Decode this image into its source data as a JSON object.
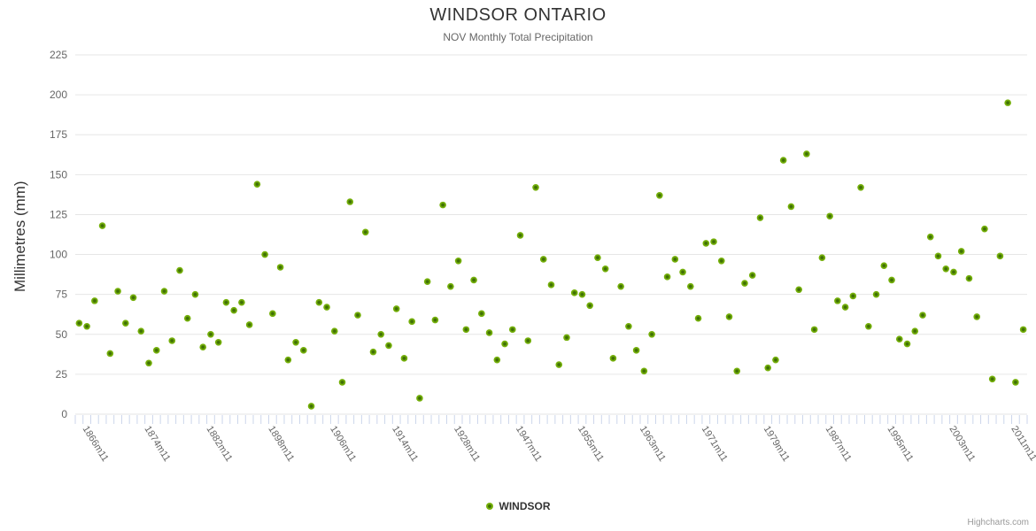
{
  "header": {
    "title": "WINDSOR ONTARIO",
    "subtitle": "NOV Monthly Total Precipitation"
  },
  "legend": {
    "series_label": "WINDSOR"
  },
  "credit_label": "Highcharts.com",
  "colors": {
    "marker_outer": "#76b10b",
    "marker_core": "#3f7004",
    "grid": "#e6e6e6",
    "tick": "#ccd6eb",
    "title_text": "#333333",
    "muted_text": "#666666",
    "credit_text": "#999999"
  },
  "chart_data": {
    "type": "scatter",
    "title": "WINDSOR ONTARIO",
    "subtitle": "NOV Monthly Total Precipitation",
    "xlabel": "",
    "ylabel": "Millimetres (mm)",
    "ylim": [
      0,
      225
    ],
    "ytick_interval": 25,
    "grid": true,
    "legend_position": "bottom-center",
    "xticks_shown": [
      "1866m11",
      "1874m11",
      "1882m11",
      "1898m11",
      "1906m11",
      "1914m11",
      "1928m11",
      "1947m11",
      "1955m11",
      "1963m11",
      "1971m11",
      "1979m11",
      "1987m11",
      "1995m11",
      "2003m11",
      "2011m11"
    ],
    "series": [
      {
        "name": "WINDSOR",
        "points": [
          [
            "1865m11",
            57
          ],
          [
            "1866m11",
            55
          ],
          [
            "1867m11",
            71
          ],
          [
            "1868m11",
            118
          ],
          [
            "1869m11",
            38
          ],
          [
            "1870m11",
            77
          ],
          [
            "1871m11",
            57
          ],
          [
            "1872m11",
            73
          ],
          [
            "1873m11",
            52
          ],
          [
            "1874m11",
            32
          ],
          [
            "1875m11",
            40
          ],
          [
            "1876m11",
            77
          ],
          [
            "1877m11",
            46
          ],
          [
            "1878m11",
            90
          ],
          [
            "1879m11",
            60
          ],
          [
            "1880m11",
            75
          ],
          [
            "1881m11",
            42
          ],
          [
            "1882m11",
            50
          ],
          [
            "1883m11",
            45
          ],
          [
            "1884m11",
            70
          ],
          [
            "1885m11",
            65
          ],
          [
            "1886m11",
            70
          ],
          [
            "1887m11",
            56
          ],
          [
            "1888m11",
            144
          ],
          [
            "1889m11",
            100
          ],
          [
            "1898m11",
            63
          ],
          [
            "1899m11",
            92
          ],
          [
            "1900m11",
            34
          ],
          [
            "1901m11",
            45
          ],
          [
            "1902m11",
            40
          ],
          [
            "1903m11",
            5
          ],
          [
            "1904m11",
            70
          ],
          [
            "1905m11",
            67
          ],
          [
            "1906m11",
            52
          ],
          [
            "1907m11",
            20
          ],
          [
            "1908m11",
            133
          ],
          [
            "1909m11",
            62
          ],
          [
            "1910m11",
            114
          ],
          [
            "1911m11",
            39
          ],
          [
            "1912m11",
            50
          ],
          [
            "1913m11",
            43
          ],
          [
            "1914m11",
            66
          ],
          [
            "1915m11",
            35
          ],
          [
            "1916m11",
            58
          ],
          [
            "1917m11",
            10
          ],
          [
            "1918m11",
            83
          ],
          [
            "1919m11",
            59
          ],
          [
            "1920m11",
            131
          ],
          [
            "1921m11",
            80
          ],
          [
            "1928m11",
            96
          ],
          [
            "1929m11",
            53
          ],
          [
            "1930m11",
            84
          ],
          [
            "1931m11",
            63
          ],
          [
            "1932m11",
            51
          ],
          [
            "1933m11",
            34
          ],
          [
            "1934m11",
            44
          ],
          [
            "1935m11",
            53
          ],
          [
            "1947m11",
            112
          ],
          [
            "1948m11",
            46
          ],
          [
            "1949m11",
            142
          ],
          [
            "1950m11",
            97
          ],
          [
            "1951m11",
            81
          ],
          [
            "1952m11",
            31
          ],
          [
            "1953m11",
            48
          ],
          [
            "1954m11",
            76
          ],
          [
            "1955m11",
            75
          ],
          [
            "1956m11",
            68
          ],
          [
            "1957m11",
            98
          ],
          [
            "1958m11",
            91
          ],
          [
            "1959m11",
            35
          ],
          [
            "1960m11",
            80
          ],
          [
            "1961m11",
            55
          ],
          [
            "1962m11",
            40
          ],
          [
            "1963m11",
            27
          ],
          [
            "1964m11",
            50
          ],
          [
            "1965m11",
            137
          ],
          [
            "1966m11",
            86
          ],
          [
            "1967m11",
            97
          ],
          [
            "1968m11",
            89
          ],
          [
            "1969m11",
            80
          ],
          [
            "1970m11",
            60
          ],
          [
            "1971m11",
            107
          ],
          [
            "1972m11",
            108
          ],
          [
            "1973m11",
            96
          ],
          [
            "1974m11",
            61
          ],
          [
            "1975m11",
            27
          ],
          [
            "1976m11",
            82
          ],
          [
            "1977m11",
            87
          ],
          [
            "1978m11",
            123
          ],
          [
            "1979m11",
            29
          ],
          [
            "1980m11",
            34
          ],
          [
            "1981m11",
            159
          ],
          [
            "1982m11",
            130
          ],
          [
            "1983m11",
            78
          ],
          [
            "1984m11",
            163
          ],
          [
            "1985m11",
            53
          ],
          [
            "1986m11",
            98
          ],
          [
            "1987m11",
            124
          ],
          [
            "1988m11",
            71
          ],
          [
            "1989m11",
            67
          ],
          [
            "1990m11",
            74
          ],
          [
            "1991m11",
            142
          ],
          [
            "1992m11",
            55
          ],
          [
            "1993m11",
            75
          ],
          [
            "1994m11",
            93
          ],
          [
            "1995m11",
            84
          ],
          [
            "1996m11",
            47
          ],
          [
            "1997m11",
            44
          ],
          [
            "1998m11",
            52
          ],
          [
            "1999m11",
            62
          ],
          [
            "2000m11",
            111
          ],
          [
            "2001m11",
            99
          ],
          [
            "2002m11",
            91
          ],
          [
            "2003m11",
            89
          ],
          [
            "2004m11",
            102
          ],
          [
            "2005m11",
            85
          ],
          [
            "2006m11",
            61
          ],
          [
            "2007m11",
            116
          ],
          [
            "2008m11",
            22
          ],
          [
            "2009m11",
            99
          ],
          [
            "2010m11",
            195
          ],
          [
            "2011m11",
            20
          ],
          [
            "2012m11",
            53
          ]
        ]
      }
    ]
  }
}
